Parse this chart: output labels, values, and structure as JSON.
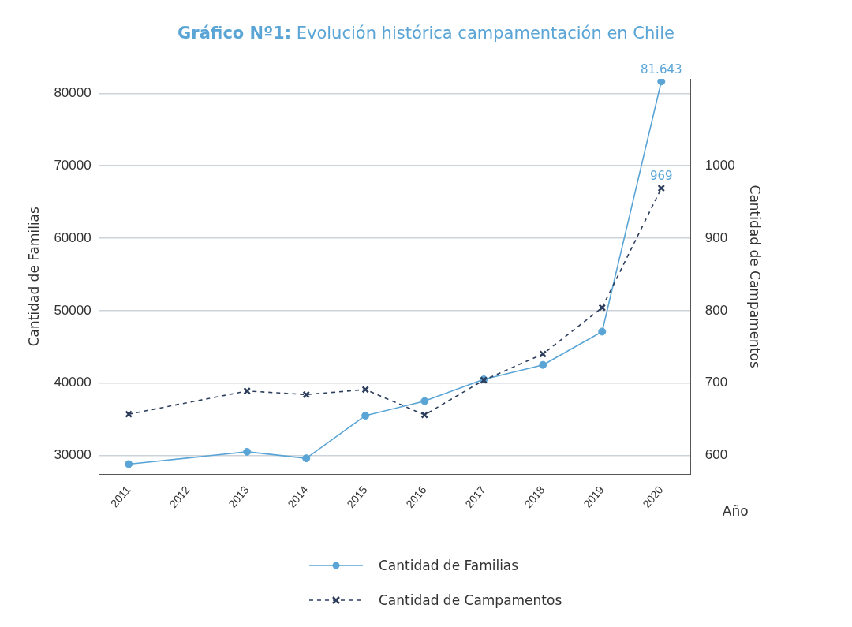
{
  "chart_data": {
    "type": "line",
    "title": "Gráfico Nº1: Evolución histórica campamentación en Chile",
    "xlabel": "Año",
    "ylabel": "Cantidad de Familias",
    "y2label": "Cantidad de Campamentos",
    "categories": [
      "2011",
      "2012",
      "2013",
      "2014",
      "2015",
      "2016",
      "2017",
      "2018",
      "2019",
      "2020"
    ],
    "series": [
      {
        "name": "Cantidad de Familias",
        "color": "#5aa5d6",
        "marker": "circle",
        "line_style": "solid",
        "values": [
          28800,
          null,
          30500,
          29600,
          35500,
          37500,
          40500,
          42500,
          47100,
          81643
        ],
        "value_labels": [
          null,
          null,
          null,
          null,
          null,
          null,
          null,
          null,
          null,
          "81.643"
        ]
      },
      {
        "name": "Cantidad de Campamentos",
        "color": "#2c3e5c",
        "marker": "cross",
        "line_style": "dashed",
        "axis": "y2",
        "values": [
          657,
          null,
          689,
          684,
          691,
          656,
          704,
          740,
          804,
          969
        ],
        "value_labels": [
          null,
          null,
          null,
          null,
          null,
          null,
          null,
          null,
          null,
          "969"
        ]
      }
    ],
    "ylim": [
      27400,
      82000
    ],
    "yticks": [
      30000,
      40000,
      50000,
      60000,
      70000,
      80000
    ],
    "y2lim": [
      574,
      1120
    ],
    "y2ticks": [
      600,
      700,
      800,
      900,
      1000
    ],
    "grid": "y",
    "legend": "bottom"
  }
}
